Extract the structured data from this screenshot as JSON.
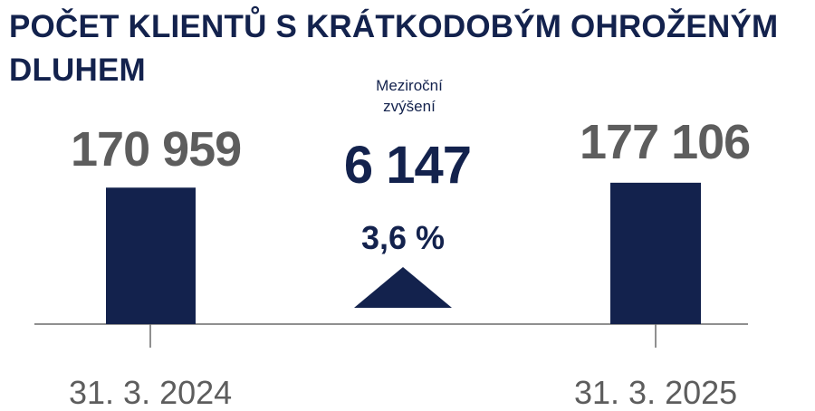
{
  "chart_data": {
    "type": "bar",
    "title": "POČET KLIENTŮ S KRÁTKODOBÝM OHROŽENÝM DLUHEM",
    "categories": [
      "31. 3. 2024",
      "31. 3. 2025"
    ],
    "values": [
      170959,
      177106
    ],
    "value_labels": [
      "170 959",
      "177 106"
    ],
    "change": {
      "caption_line1": "Meziroční",
      "caption_line2": "zvýšení",
      "absolute": "6 147",
      "percent": "3,6 %"
    },
    "ylim": [
      0,
      186000
    ],
    "grid": false,
    "legend": "none"
  },
  "colors": {
    "title": "#13224d",
    "bar": "#13224d",
    "value_text": "#5d5d5d",
    "axis": "#6b6b6b",
    "arrow": "#13224d"
  },
  "icons": {
    "increase": "triangle-up-icon"
  }
}
